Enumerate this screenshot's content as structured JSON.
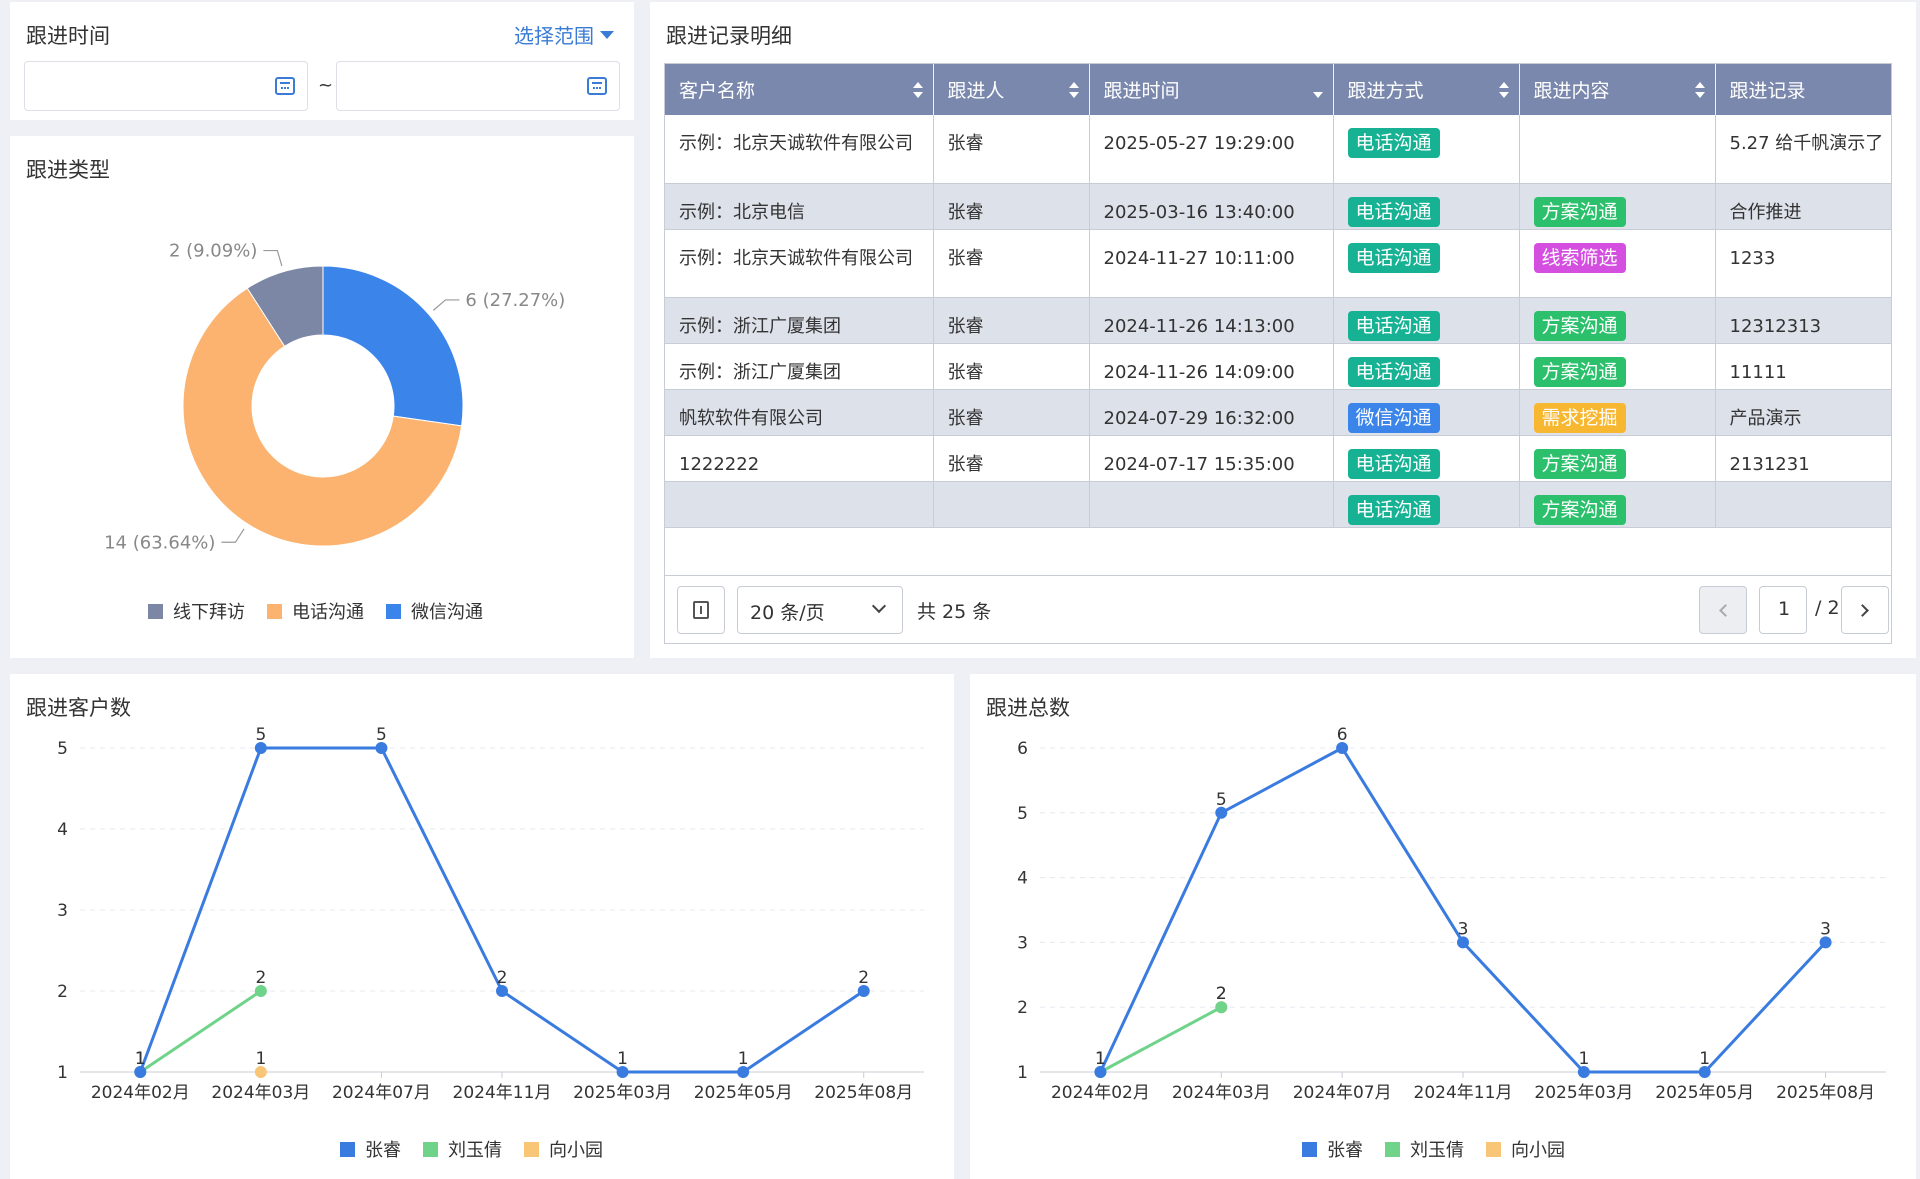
{
  "filter": {
    "title": "跟进时间",
    "range_label": "选择范围",
    "start_placeholder": "",
    "end_placeholder": "",
    "separator": "~"
  },
  "type_chart": {
    "title": "跟进类型",
    "chart_data": {
      "type": "pie",
      "slices": [
        {
          "name": "线下拜访",
          "value": 2,
          "label": "2 (9.09%)",
          "color": "#7c87a6"
        },
        {
          "name": "电话沟通",
          "value": 14,
          "label": "14 (63.64%)",
          "color": "#fbb36f"
        },
        {
          "name": "微信沟通",
          "value": 6,
          "label": "6 (27.27%)",
          "color": "#3a84ea"
        }
      ],
      "legend_position": "bottom"
    }
  },
  "records": {
    "title": "跟进记录明细",
    "columns": [
      "客户名称",
      "跟进人",
      "跟进时间",
      "跟进方式",
      "跟进内容",
      "跟进记录"
    ],
    "rows": [
      {
        "customer": "示例：北京天诚软件有限公司",
        "person": "张睿",
        "time": "2025-05-27 19:29:00",
        "method": "电话沟通",
        "content": "",
        "record": "5.27 给千帆演示了"
      },
      {
        "customer": "示例：北京电信",
        "person": "张睿",
        "time": "2025-03-16 13:40:00",
        "method": "电话沟通",
        "content": "方案沟通",
        "record": "合作推进"
      },
      {
        "customer": "示例：北京天诚软件有限公司",
        "person": "张睿",
        "time": "2024-11-27 10:11:00",
        "method": "电话沟通",
        "content": "线索筛选",
        "record": "1233"
      },
      {
        "customer": "示例：浙江广厦集团",
        "person": "张睿",
        "time": "2024-11-26 14:13:00",
        "method": "电话沟通",
        "content": "方案沟通",
        "record": "12312313"
      },
      {
        "customer": "示例：浙江广厦集团",
        "person": "张睿",
        "time": "2024-11-26 14:09:00",
        "method": "电话沟通",
        "content": "方案沟通",
        "record": "11111"
      },
      {
        "customer": "帆软软件有限公司",
        "person": "张睿",
        "time": "2024-07-29 16:32:00",
        "method": "微信沟通",
        "content": "需求挖掘",
        "record": "产品演示"
      },
      {
        "customer": "1222222",
        "person": "张睿",
        "time": "2024-07-17 15:35:00",
        "method": "电话沟通",
        "content": "方案沟通",
        "record": "2131231"
      },
      {
        "customer": "",
        "person": "",
        "time": "",
        "method": "电话沟通",
        "content": "方案沟通",
        "record": ""
      }
    ],
    "tag_colors": {
      "电话沟通": "#17b294",
      "微信沟通": "#3a84ea",
      "方案沟通": "#2cc06c",
      "线索筛选": "#d44fe0",
      "需求挖掘": "#f7b731"
    },
    "pagination": {
      "page_size": "20 条/页",
      "total": "共 25 条",
      "current": "1",
      "pages": "/ 2"
    }
  },
  "customers_chart": {
    "title": "跟进客户数",
    "chart_data": {
      "type": "line",
      "x": [
        "2024年02月",
        "2024年03月",
        "2024年07月",
        "2024年11月",
        "2025年03月",
        "2025年05月",
        "2025年08月"
      ],
      "ylim": [
        1,
        5
      ],
      "yticks": [
        1,
        2,
        3,
        4,
        5
      ],
      "series": [
        {
          "name": "张睿",
          "color": "#3a7be0",
          "values": [
            1,
            5,
            5,
            2,
            1,
            1,
            2
          ]
        },
        {
          "name": "刘玉倩",
          "color": "#6fd38a",
          "values": [
            1,
            2,
            null,
            null,
            null,
            null,
            null
          ]
        },
        {
          "name": "向小园",
          "color": "#f9c678",
          "values": [
            null,
            1,
            null,
            null,
            null,
            null,
            null
          ]
        }
      ]
    }
  },
  "total_chart": {
    "title": "跟进总数",
    "chart_data": {
      "type": "line",
      "x": [
        "2024年02月",
        "2024年03月",
        "2024年07月",
        "2024年11月",
        "2025年03月",
        "2025年05月",
        "2025年08月"
      ],
      "ylim": [
        1,
        6
      ],
      "yticks": [
        1,
        2,
        3,
        4,
        5,
        6
      ],
      "series": [
        {
          "name": "张睿",
          "color": "#3a7be0",
          "values": [
            1,
            5,
            6,
            3,
            1,
            1,
            3
          ]
        },
        {
          "name": "刘玉倩",
          "color": "#6fd38a",
          "values": [
            1,
            2,
            null,
            null,
            null,
            null,
            null
          ]
        },
        {
          "name": "向小园",
          "color": "#f9c678",
          "values": [
            null,
            2,
            null,
            null,
            null,
            null,
            null
          ]
        }
      ]
    }
  }
}
